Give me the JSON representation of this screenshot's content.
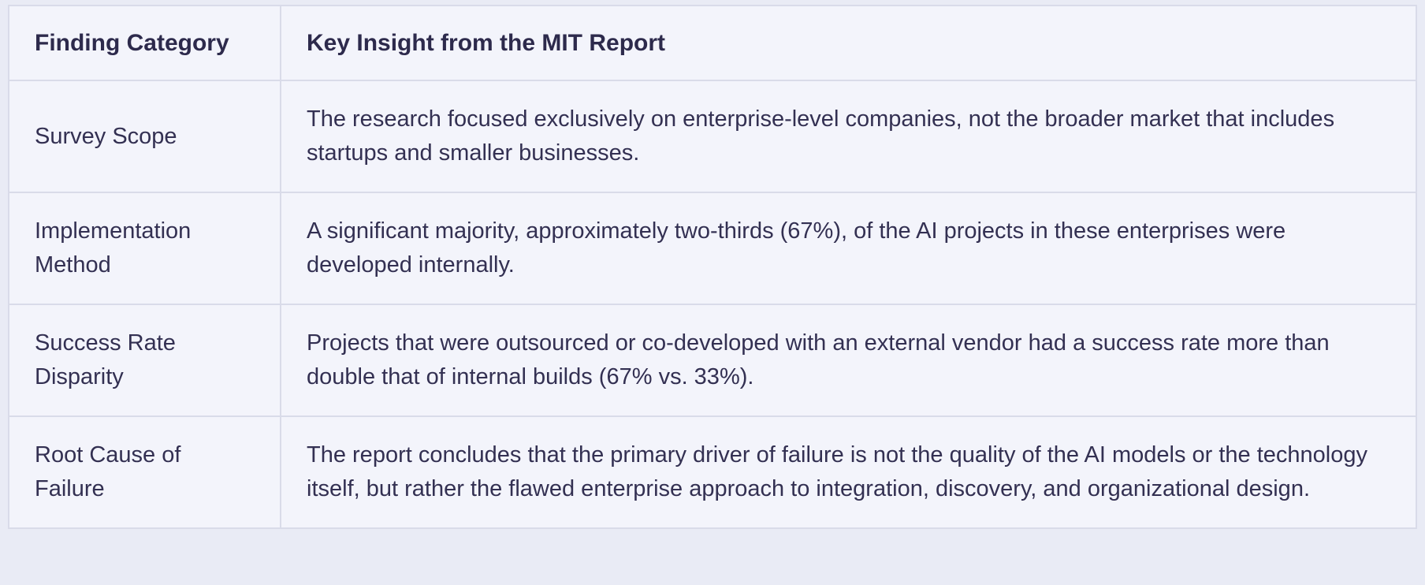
{
  "table": {
    "columns": [
      {
        "label": "Finding Category"
      },
      {
        "label": "Key Insight from the MIT Report"
      }
    ],
    "rows": [
      {
        "category": "Survey Scope",
        "insight": "The research focused exclusively on enterprise-level companies, not the broader market that includes startups and smaller businesses."
      },
      {
        "category": "Implementation Method",
        "insight": "A significant majority, approximately two-thirds (67%), of the AI projects in these enterprises were developed internally."
      },
      {
        "category": "Success Rate Disparity",
        "insight": "Projects that were outsourced or co-developed with an external vendor had a success rate more than double that of internal builds (67% vs. 33%)."
      },
      {
        "category": "Root Cause of Failure",
        "insight": "The report concludes that the primary driver of failure is not the quality of the AI models or the technology itself, but rather the flawed enterprise approach to integration, discovery, and organizational design."
      }
    ],
    "colors": {
      "page_background": "#e9ebf5",
      "cell_background": "#f3f4fb",
      "border": "#d9dbe9",
      "text": "#333052",
      "heading": "#2d2a4c"
    }
  }
}
